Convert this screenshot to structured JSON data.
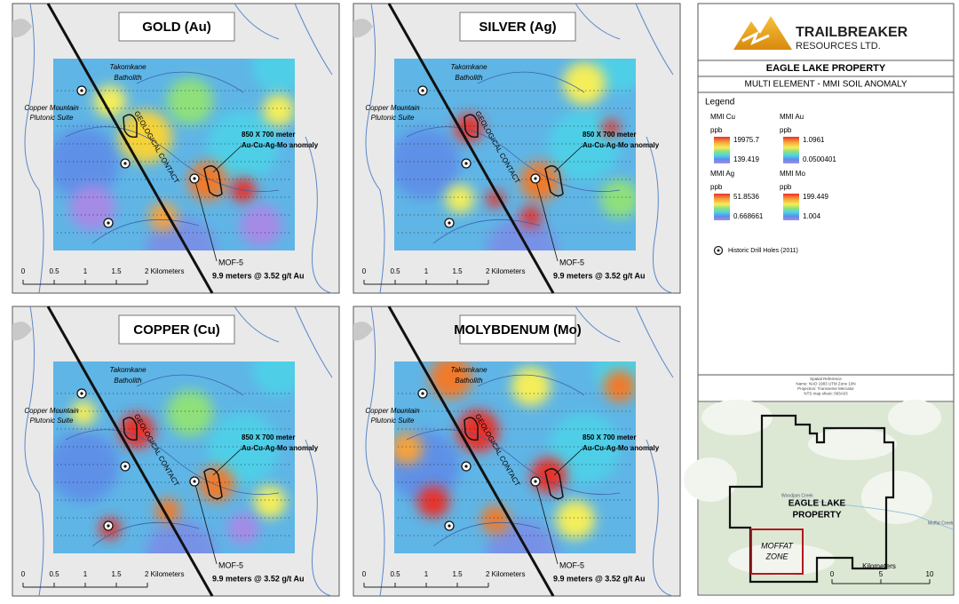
{
  "panels": [
    {
      "title": "GOLD (Au)"
    },
    {
      "title": "SILVER (Ag)"
    },
    {
      "title": "COPPER (Cu)"
    },
    {
      "title": "MOLYBDENUM (Mo)"
    }
  ],
  "panel_labels": {
    "batholith": [
      "Takomkane",
      "Batholith"
    ],
    "suite": [
      "Copper Mountain",
      "Plutonic Suite"
    ],
    "contact": "GEOLOGICAL CONTACT",
    "anomaly": [
      "850 X 700 meter",
      "Au-Cu-Ag-Mo anomaly"
    ],
    "hole": "MOF-5",
    "intercept": "9.9 meters @ 3.52 g/t Au",
    "scale": [
      "0",
      "0.5",
      "1",
      "1.5",
      "2 Kilometers"
    ]
  },
  "header": {
    "company": [
      "TRAILBREAKER",
      "RESOURCES LTD."
    ],
    "title": "EAGLE LAKE PROPERTY",
    "subtitle": "MULTI ELEMENT - MMI SOIL ANOMALY"
  },
  "legend": {
    "title": "Legend",
    "entries": [
      {
        "name": "MMI Cu",
        "unit": "ppb",
        "max": "19975.7",
        "min": "139.419"
      },
      {
        "name": "MMI Au",
        "unit": "ppb",
        "max": "1.0961",
        "min": "0.0500401"
      },
      {
        "name": "MMI Ag",
        "unit": "ppb",
        "max": "51.8536",
        "min": "0.668661"
      },
      {
        "name": "MMI Mo",
        "unit": "ppb",
        "max": "199.449",
        "min": "1.004"
      }
    ],
    "drill_holes": "Historic Drill Holes (2011)"
  },
  "spatial_reference": [
    "Spatial Reference",
    "Name: NAD 1983 UTM Zone 10N",
    "Projection: Transverse Mercator",
    "NTS map sheet: 093A03"
  ],
  "inset": {
    "property": [
      "EAGLE LAKE",
      "PROPERTY"
    ],
    "zone": [
      "MOFFAT",
      "ZONE"
    ],
    "creeks": [
      "Woodjam Creek",
      "Moffat Creek"
    ],
    "scale_title": "Kilometers",
    "scale": [
      "0",
      "5",
      "10"
    ]
  }
}
